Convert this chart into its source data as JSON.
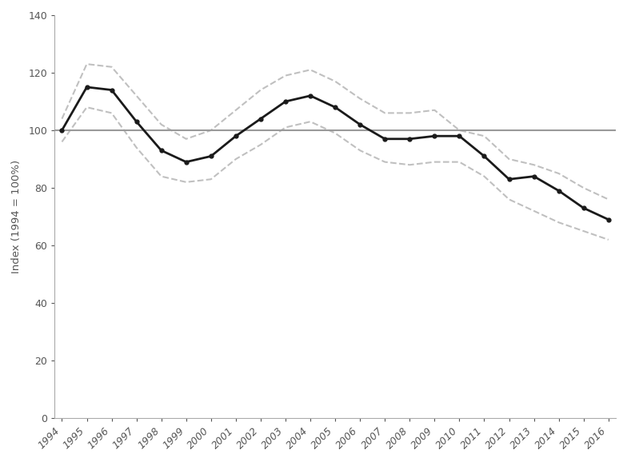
{
  "years": [
    1994,
    1995,
    1996,
    1997,
    1998,
    1999,
    2000,
    2001,
    2002,
    2003,
    2004,
    2005,
    2006,
    2007,
    2008,
    2009,
    2010,
    2011,
    2012,
    2013,
    2014,
    2015,
    2016
  ],
  "main_line": [
    100,
    115,
    114,
    103,
    93,
    89,
    91,
    98,
    104,
    110,
    112,
    108,
    102,
    97,
    97,
    98,
    98,
    91,
    83,
    84,
    79,
    73,
    69
  ],
  "upper_ci": [
    104,
    123,
    122,
    112,
    102,
    97,
    100,
    107,
    114,
    119,
    121,
    117,
    111,
    106,
    106,
    107,
    100,
    98,
    90,
    88,
    85,
    80,
    76
  ],
  "lower_ci": [
    96,
    108,
    106,
    94,
    84,
    82,
    83,
    90,
    95,
    101,
    103,
    99,
    93,
    89,
    88,
    89,
    89,
    84,
    76,
    72,
    68,
    65,
    62
  ],
  "baseline": 100,
  "ylabel": "Index (1994 = 100%)",
  "ylim": [
    0,
    140
  ],
  "yticks": [
    0,
    20,
    40,
    60,
    80,
    100,
    120,
    140
  ],
  "main_color": "#1a1a1a",
  "ci_color": "#c0c0c0",
  "baseline_color": "#999999",
  "background_color": "#ffffff",
  "tick_color": "#555555",
  "spine_color": "#aaaaaa"
}
